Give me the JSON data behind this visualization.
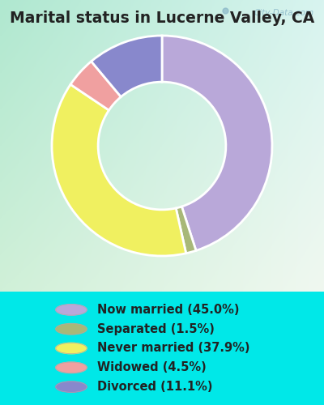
{
  "title": "Marital status in Lucerne Valley, CA",
  "slices": [
    45.0,
    1.5,
    37.9,
    4.5,
    11.1
  ],
  "labels": [
    "Now married (45.0%)",
    "Separated (1.5%)",
    "Never married (37.9%)",
    "Widowed (4.5%)",
    "Divorced (11.1%)"
  ],
  "colors": [
    "#b9a8d9",
    "#a8b878",
    "#f0f060",
    "#f0a0a0",
    "#8888cc"
  ],
  "outer_bg": "#00e8e8",
  "chart_bg_tl": "#b0e8d0",
  "chart_bg_br": "#e8f8e0",
  "title_fontsize": 13.5,
  "legend_fontsize": 10.5,
  "watermark": "City-Data.com",
  "donut_width": 0.42,
  "startangle": 90
}
